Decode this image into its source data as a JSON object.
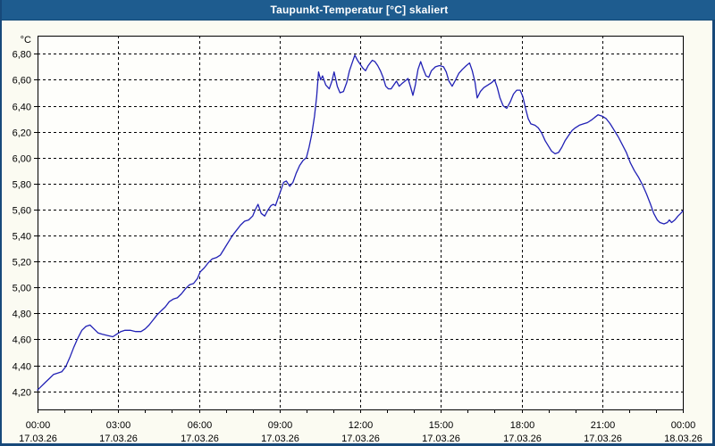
{
  "window": {
    "title": "Taupunkt-Temperatur [°C] skaliert"
  },
  "colors": {
    "titlebar_bg": "#1e5c8f",
    "frame_border": "#17497a",
    "content_bg": "#fbfbf2",
    "plot_bg": "#fefefb",
    "axis": "#000000",
    "grid": "#000000",
    "tick_text": "#000000",
    "line": "#2121b5"
  },
  "chart_data": {
    "type": "line",
    "title": "Taupunkt-Temperatur [°C] skaliert",
    "unit_label": "°C",
    "xlabel": "",
    "ylabel": "°C",
    "grid": "dashed",
    "legend": "none",
    "xlim_hours": [
      0,
      24
    ],
    "ylim": [
      4.06,
      6.94
    ],
    "x_ticks": [
      {
        "hour": 0,
        "time": "00:00",
        "date": "17.03.26"
      },
      {
        "hour": 3,
        "time": "03:00",
        "date": "17.03.26"
      },
      {
        "hour": 6,
        "time": "06:00",
        "date": "17.03.26"
      },
      {
        "hour": 9,
        "time": "09:00",
        "date": "17.03.26"
      },
      {
        "hour": 12,
        "time": "12:00",
        "date": "17.03.26"
      },
      {
        "hour": 15,
        "time": "15:00",
        "date": "17.03.26"
      },
      {
        "hour": 18,
        "time": "18:00",
        "date": "17.03.26"
      },
      {
        "hour": 21,
        "time": "21:00",
        "date": "17.03.26"
      },
      {
        "hour": 24,
        "time": "00:00",
        "date": "18.03.26"
      }
    ],
    "minor_x_tick_every_hours": 1,
    "y_ticks": [
      {
        "value": 6.8,
        "label": "6,80"
      },
      {
        "value": 6.6,
        "label": "6,60"
      },
      {
        "value": 6.4,
        "label": "6,40"
      },
      {
        "value": 6.2,
        "label": "6,20"
      },
      {
        "value": 6.0,
        "label": "6,00"
      },
      {
        "value": 5.8,
        "label": "5,80"
      },
      {
        "value": 5.6,
        "label": "5,60"
      },
      {
        "value": 5.4,
        "label": "5,40"
      },
      {
        "value": 5.2,
        "label": "5,20"
      },
      {
        "value": 5.0,
        "label": "5,00"
      },
      {
        "value": 4.8,
        "label": "4,80"
      },
      {
        "value": 4.6,
        "label": "4,60"
      },
      {
        "value": 4.4,
        "label": "4,40"
      },
      {
        "value": 4.2,
        "label": "4,20"
      }
    ],
    "series": [
      {
        "name": "Taupunkt-Temperatur",
        "color": "#2121b5",
        "points": [
          [
            0,
            4.21
          ],
          [
            0.15,
            4.24
          ],
          [
            0.3,
            4.27
          ],
          [
            0.45,
            4.3
          ],
          [
            0.6,
            4.33
          ],
          [
            0.75,
            4.34
          ],
          [
            0.9,
            4.35
          ],
          [
            1.05,
            4.39
          ],
          [
            1.2,
            4.46
          ],
          [
            1.35,
            4.54
          ],
          [
            1.5,
            4.61
          ],
          [
            1.65,
            4.67
          ],
          [
            1.8,
            4.7
          ],
          [
            1.95,
            4.71
          ],
          [
            2.1,
            4.68
          ],
          [
            2.25,
            4.65
          ],
          [
            2.4,
            4.64
          ],
          [
            2.6,
            4.63
          ],
          [
            2.8,
            4.62
          ],
          [
            2.95,
            4.64
          ],
          [
            3.1,
            4.66
          ],
          [
            3.25,
            4.67
          ],
          [
            3.45,
            4.67
          ],
          [
            3.65,
            4.66
          ],
          [
            3.85,
            4.66
          ],
          [
            4,
            4.68
          ],
          [
            4.15,
            4.71
          ],
          [
            4.3,
            4.75
          ],
          [
            4.45,
            4.79
          ],
          [
            4.6,
            4.82
          ],
          [
            4.75,
            4.85
          ],
          [
            4.9,
            4.89
          ],
          [
            5.05,
            4.91
          ],
          [
            5.2,
            4.92
          ],
          [
            5.35,
            4.95
          ],
          [
            5.5,
            4.99
          ],
          [
            5.65,
            5.02
          ],
          [
            5.8,
            5.03
          ],
          [
            5.95,
            5.07
          ],
          [
            6.05,
            5.12
          ],
          [
            6.2,
            5.15
          ],
          [
            6.35,
            5.19
          ],
          [
            6.5,
            5.22
          ],
          [
            6.65,
            5.23
          ],
          [
            6.8,
            5.25
          ],
          [
            6.95,
            5.3
          ],
          [
            7.1,
            5.35
          ],
          [
            7.25,
            5.4
          ],
          [
            7.4,
            5.44
          ],
          [
            7.55,
            5.48
          ],
          [
            7.7,
            5.51
          ],
          [
            7.85,
            5.52
          ],
          [
            8,
            5.55
          ],
          [
            8.1,
            5.6
          ],
          [
            8.2,
            5.64
          ],
          [
            8.32,
            5.57
          ],
          [
            8.45,
            5.55
          ],
          [
            8.55,
            5.59
          ],
          [
            8.68,
            5.63
          ],
          [
            8.77,
            5.64
          ],
          [
            8.85,
            5.63
          ],
          [
            8.95,
            5.69
          ],
          [
            9.05,
            5.75
          ],
          [
            9.15,
            5.81
          ],
          [
            9.25,
            5.82
          ],
          [
            9.38,
            5.78
          ],
          [
            9.5,
            5.81
          ],
          [
            9.62,
            5.88
          ],
          [
            9.75,
            5.94
          ],
          [
            9.88,
            5.98
          ],
          [
            10,
            6.0
          ],
          [
            10.1,
            6.08
          ],
          [
            10.2,
            6.18
          ],
          [
            10.3,
            6.32
          ],
          [
            10.38,
            6.47
          ],
          [
            10.45,
            6.66
          ],
          [
            10.53,
            6.6
          ],
          [
            10.6,
            6.63
          ],
          [
            10.72,
            6.56
          ],
          [
            10.85,
            6.53
          ],
          [
            10.95,
            6.59
          ],
          [
            11.03,
            6.66
          ],
          [
            11.15,
            6.55
          ],
          [
            11.25,
            6.5
          ],
          [
            11.38,
            6.51
          ],
          [
            11.5,
            6.58
          ],
          [
            11.6,
            6.67
          ],
          [
            11.7,
            6.73
          ],
          [
            11.8,
            6.79
          ],
          [
            11.9,
            6.75
          ],
          [
            12,
            6.72
          ],
          [
            12.1,
            6.69
          ],
          [
            12.2,
            6.67
          ],
          [
            12.3,
            6.71
          ],
          [
            12.45,
            6.75
          ],
          [
            12.55,
            6.74
          ],
          [
            12.65,
            6.71
          ],
          [
            12.75,
            6.67
          ],
          [
            12.85,
            6.62
          ],
          [
            12.95,
            6.55
          ],
          [
            13.05,
            6.53
          ],
          [
            13.15,
            6.53
          ],
          [
            13.25,
            6.56
          ],
          [
            13.35,
            6.59
          ],
          [
            13.45,
            6.55
          ],
          [
            13.55,
            6.57
          ],
          [
            13.67,
            6.59
          ],
          [
            13.78,
            6.61
          ],
          [
            13.88,
            6.54
          ],
          [
            13.96,
            6.48
          ],
          [
            14.05,
            6.56
          ],
          [
            14.15,
            6.68
          ],
          [
            14.25,
            6.74
          ],
          [
            14.35,
            6.68
          ],
          [
            14.45,
            6.63
          ],
          [
            14.55,
            6.62
          ],
          [
            14.65,
            6.67
          ],
          [
            14.8,
            6.7
          ],
          [
            14.95,
            6.71
          ],
          [
            15.1,
            6.7
          ],
          [
            15.2,
            6.66
          ],
          [
            15.3,
            6.59
          ],
          [
            15.42,
            6.55
          ],
          [
            15.55,
            6.6
          ],
          [
            15.67,
            6.65
          ],
          [
            15.8,
            6.68
          ],
          [
            15.95,
            6.71
          ],
          [
            16.07,
            6.73
          ],
          [
            16.17,
            6.67
          ],
          [
            16.27,
            6.58
          ],
          [
            16.35,
            6.46
          ],
          [
            16.47,
            6.51
          ],
          [
            16.6,
            6.54
          ],
          [
            16.75,
            6.56
          ],
          [
            16.9,
            6.58
          ],
          [
            17,
            6.6
          ],
          [
            17.1,
            6.54
          ],
          [
            17.2,
            6.46
          ],
          [
            17.32,
            6.4
          ],
          [
            17.45,
            6.38
          ],
          [
            17.58,
            6.43
          ],
          [
            17.7,
            6.49
          ],
          [
            17.82,
            6.52
          ],
          [
            17.95,
            6.52
          ],
          [
            18.05,
            6.47
          ],
          [
            18.15,
            6.38
          ],
          [
            18.25,
            6.3
          ],
          [
            18.35,
            6.26
          ],
          [
            18.5,
            6.25
          ],
          [
            18.62,
            6.23
          ],
          [
            18.75,
            6.19
          ],
          [
            18.88,
            6.13
          ],
          [
            19,
            6.09
          ],
          [
            19.12,
            6.05
          ],
          [
            19.25,
            6.03
          ],
          [
            19.38,
            6.04
          ],
          [
            19.5,
            6.08
          ],
          [
            19.62,
            6.13
          ],
          [
            19.75,
            6.17
          ],
          [
            19.88,
            6.21
          ],
          [
            20,
            6.23
          ],
          [
            20.15,
            6.25
          ],
          [
            20.3,
            6.26
          ],
          [
            20.45,
            6.27
          ],
          [
            20.6,
            6.29
          ],
          [
            20.72,
            6.31
          ],
          [
            20.85,
            6.33
          ],
          [
            21,
            6.32
          ],
          [
            21.15,
            6.3
          ],
          [
            21.3,
            6.26
          ],
          [
            21.45,
            6.21
          ],
          [
            21.6,
            6.16
          ],
          [
            21.75,
            6.1
          ],
          [
            21.9,
            6.04
          ],
          [
            22.05,
            5.96
          ],
          [
            22.2,
            5.9
          ],
          [
            22.35,
            5.85
          ],
          [
            22.5,
            5.79
          ],
          [
            22.65,
            5.72
          ],
          [
            22.8,
            5.64
          ],
          [
            22.92,
            5.57
          ],
          [
            23.05,
            5.52
          ],
          [
            23.15,
            5.5
          ],
          [
            23.3,
            5.49
          ],
          [
            23.42,
            5.5
          ],
          [
            23.5,
            5.52
          ],
          [
            23.58,
            5.5
          ],
          [
            23.7,
            5.52
          ],
          [
            23.82,
            5.55
          ],
          [
            23.92,
            5.57
          ],
          [
            24,
            5.59
          ]
        ]
      }
    ]
  }
}
